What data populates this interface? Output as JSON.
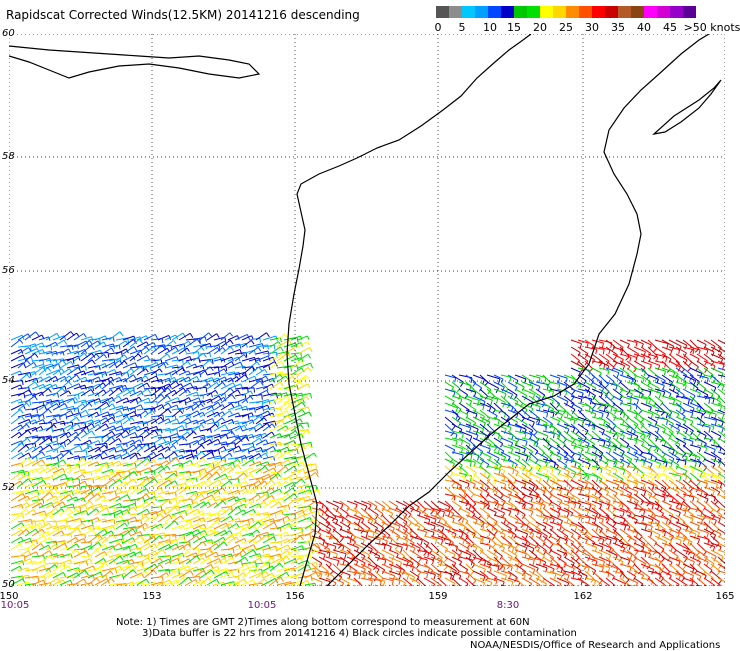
{
  "title": "Rapidscat Corrected Winds(12.5KM) 20141216 descending",
  "scale": {
    "colors": [
      "#555555",
      "#8c8c8c",
      "#00c8ff",
      "#00a0ff",
      "#0048ff",
      "#0000c8",
      "#00c800",
      "#00e000",
      "#ffff00",
      "#ffd700",
      "#ff8c00",
      "#ff5000",
      "#ff0000",
      "#c80000",
      "#b45a28",
      "#8b4513",
      "#ff00ff",
      "#d200d2",
      "#9600c8",
      "#5a0096"
    ],
    "labels": [
      "0",
      "5",
      "10",
      "15",
      "20",
      "25",
      "30",
      "35",
      "40",
      "45",
      ">50 knots"
    ]
  },
  "lat_labels": [
    "60",
    "58",
    "56",
    "54",
    "52",
    "50"
  ],
  "lon_labels": [
    "150",
    "153",
    "156",
    "159",
    "162",
    "165"
  ],
  "times": [
    "10:05",
    "10:05",
    "8:30"
  ],
  "notes": [
    "Note: 1) Times are GMT 2)Times along bottom correspond to measurement at 60N",
    "3)Data buffer is 22 hrs from 20141216 4) Black circles indicate possible contamination",
    "NOAA/NESDIS/Office of Research and Applications"
  ]
}
